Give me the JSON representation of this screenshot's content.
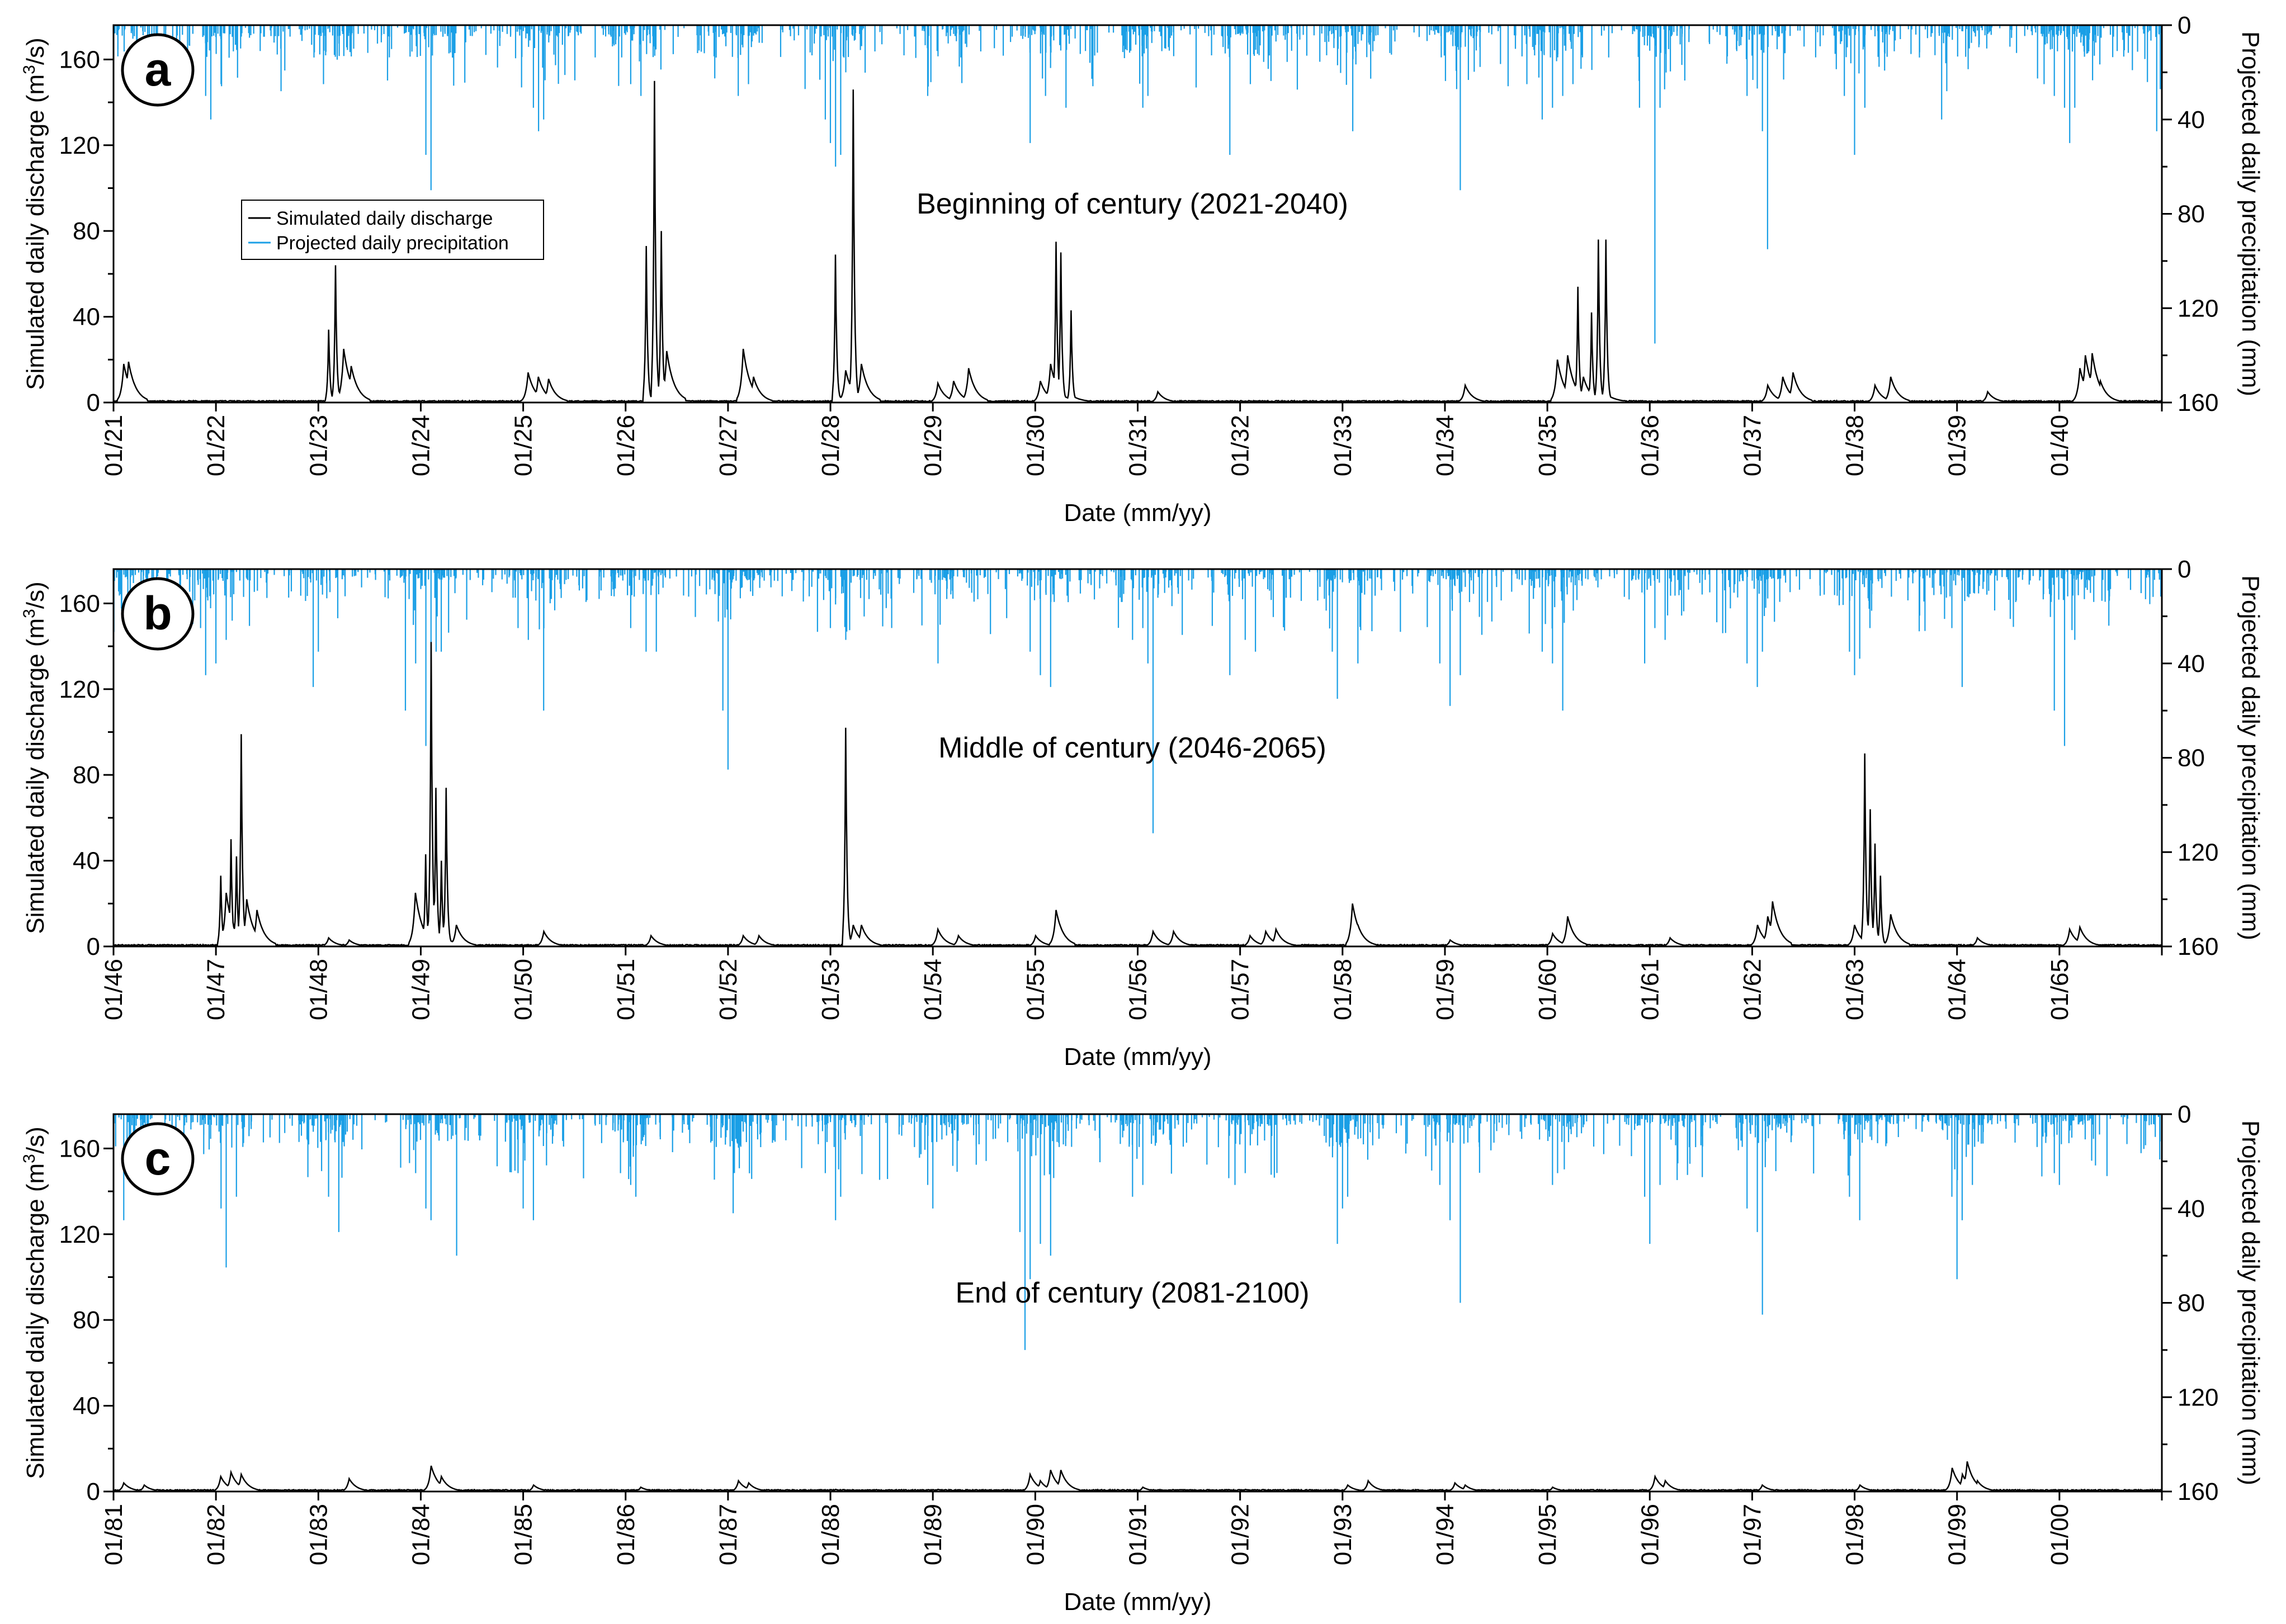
{
  "colors": {
    "discharge": "#000000",
    "precipitation": "#1a9fe6",
    "axis": "#000000",
    "background": "#ffffff"
  },
  "legend": {
    "discharge": "Simulated daily discharge",
    "precipitation": "Projected daily precipitation"
  },
  "chart_data": [
    {
      "type": "line",
      "panel": "a",
      "annotation": "Beginning of century (2021-2040)",
      "xlabel": "Date (mm/yy)",
      "ylabel_left": "Simulated daily discharge (m",
      "ylabel_left_sup": "3",
      "ylabel_left_end": "/s)",
      "ylabel_right": "Projected daily precipitation (mm)",
      "ylim_left": [
        0,
        176
      ],
      "ylim_right_inverted": [
        0,
        160
      ],
      "left_ticks": [
        "0",
        "40",
        "80",
        "120",
        "160"
      ],
      "right_ticks": [
        "0",
        "40",
        "80",
        "120",
        "160"
      ],
      "x_ticks": [
        "01/21",
        "01/22",
        "01/23",
        "01/24",
        "01/25",
        "01/26",
        "01/27",
        "01/28",
        "01/29",
        "01/30",
        "01/31",
        "01/32",
        "01/33",
        "01/34",
        "01/35",
        "01/36",
        "01/37",
        "01/38",
        "01/39",
        "01/40"
      ],
      "discharge_peaks": [
        [
          0.1,
          18
        ],
        [
          0.15,
          19
        ],
        [
          2.1,
          34
        ],
        [
          2.17,
          64
        ],
        [
          2.25,
          25
        ],
        [
          2.32,
          17
        ],
        [
          4.05,
          14
        ],
        [
          4.15,
          12
        ],
        [
          4.25,
          11
        ],
        [
          5.2,
          73
        ],
        [
          5.28,
          150
        ],
        [
          5.35,
          80
        ],
        [
          5.4,
          24
        ],
        [
          6.15,
          25
        ],
        [
          6.25,
          12
        ],
        [
          7.05,
          69
        ],
        [
          7.15,
          15
        ],
        [
          7.22,
          146
        ],
        [
          7.3,
          18
        ],
        [
          8.05,
          9
        ],
        [
          8.2,
          10
        ],
        [
          8.35,
          16
        ],
        [
          9.05,
          10
        ],
        [
          9.15,
          18
        ],
        [
          9.2,
          75
        ],
        [
          9.25,
          70
        ],
        [
          9.35,
          43
        ],
        [
          10.2,
          5
        ],
        [
          13.2,
          8
        ],
        [
          14.1,
          20
        ],
        [
          14.2,
          22
        ],
        [
          14.3,
          54
        ],
        [
          14.35,
          12
        ],
        [
          14.43,
          42
        ],
        [
          14.5,
          76
        ],
        [
          14.57,
          76
        ],
        [
          16.15,
          8
        ],
        [
          16.3,
          12
        ],
        [
          16.4,
          14
        ],
        [
          17.2,
          8
        ],
        [
          17.35,
          12
        ],
        [
          18.3,
          5
        ],
        [
          19.2,
          16
        ],
        [
          19.25,
          22
        ],
        [
          19.32,
          23
        ],
        [
          19.4,
          10
        ]
      ],
      "precip_peaks": [
        [
          0.9,
          30
        ],
        [
          0.95,
          40
        ],
        [
          1.05,
          25
        ],
        [
          2.05,
          25
        ],
        [
          3.05,
          55
        ],
        [
          3.1,
          70
        ],
        [
          4.1,
          35
        ],
        [
          4.15,
          45
        ],
        [
          4.2,
          40
        ],
        [
          5.05,
          25
        ],
        [
          5.15,
          30
        ],
        [
          6.1,
          30
        ],
        [
          6.2,
          25
        ],
        [
          6.95,
          40
        ],
        [
          7.0,
          50
        ],
        [
          7.05,
          60
        ],
        [
          7.1,
          55
        ],
        [
          7.15,
          20
        ],
        [
          7.95,
          30
        ],
        [
          8.95,
          50
        ],
        [
          9.1,
          30
        ],
        [
          9.3,
          35
        ],
        [
          10.05,
          35
        ],
        [
          10.1,
          30
        ],
        [
          10.9,
          55
        ],
        [
          11.1,
          25
        ],
        [
          12.1,
          45
        ],
        [
          13.15,
          70
        ],
        [
          13.8,
          25
        ],
        [
          13.95,
          40
        ],
        [
          14.05,
          35
        ],
        [
          14.15,
          30
        ],
        [
          14.25,
          25
        ],
        [
          14.9,
          35
        ],
        [
          15.05,
          135
        ],
        [
          15.1,
          35
        ],
        [
          15.95,
          30
        ],
        [
          16.1,
          45
        ],
        [
          16.15,
          95
        ],
        [
          16.9,
          30
        ],
        [
          17.0,
          55
        ],
        [
          17.1,
          35
        ],
        [
          17.85,
          40
        ],
        [
          17.9,
          28
        ],
        [
          18.85,
          25
        ],
        [
          18.95,
          30
        ],
        [
          19.05,
          35
        ],
        [
          19.1,
          50
        ],
        [
          19.15,
          35
        ],
        [
          19.95,
          45
        ]
      ]
    },
    {
      "type": "line",
      "panel": "b",
      "annotation": "Middle of century (2046-2065)",
      "xlabel": "Date (mm/yy)",
      "ylabel_left": "Simulated daily discharge (m",
      "ylabel_left_sup": "3",
      "ylabel_left_end": "/s)",
      "ylabel_right": "Projected daily precipitation (mm)",
      "ylim_left": [
        0,
        176
      ],
      "ylim_right_inverted": [
        0,
        160
      ],
      "left_ticks": [
        "0",
        "40",
        "80",
        "120",
        "160"
      ],
      "right_ticks": [
        "0",
        "40",
        "80",
        "120",
        "160"
      ],
      "x_ticks": [
        "01/46",
        "01/47",
        "01/48",
        "01/49",
        "01/50",
        "01/51",
        "01/52",
        "01/53",
        "01/54",
        "01/55",
        "01/56",
        "01/57",
        "01/58",
        "01/59",
        "01/60",
        "01/61",
        "01/62",
        "01/63",
        "01/64",
        "01/65"
      ],
      "discharge_peaks": [
        [
          1.05,
          33
        ],
        [
          1.1,
          25
        ],
        [
          1.15,
          50
        ],
        [
          1.2,
          42
        ],
        [
          1.25,
          99
        ],
        [
          1.3,
          22
        ],
        [
          1.4,
          17
        ],
        [
          2.1,
          4
        ],
        [
          2.3,
          3
        ],
        [
          2.95,
          25
        ],
        [
          3.05,
          43
        ],
        [
          3.1,
          142
        ],
        [
          3.15,
          74
        ],
        [
          3.2,
          40
        ],
        [
          3.25,
          74
        ],
        [
          3.35,
          10
        ],
        [
          4.2,
          7
        ],
        [
          5.25,
          5
        ],
        [
          6.15,
          5
        ],
        [
          6.3,
          5
        ],
        [
          7.15,
          102
        ],
        [
          7.22,
          10
        ],
        [
          7.3,
          10
        ],
        [
          8.05,
          8
        ],
        [
          8.25,
          5
        ],
        [
          9.0,
          5
        ],
        [
          9.2,
          17
        ],
        [
          10.15,
          7
        ],
        [
          10.35,
          7
        ],
        [
          11.1,
          5
        ],
        [
          11.25,
          7
        ],
        [
          11.35,
          8
        ],
        [
          12.1,
          20
        ],
        [
          12.15,
          10
        ],
        [
          13.05,
          3
        ],
        [
          14.05,
          6
        ],
        [
          14.2,
          14
        ],
        [
          15.2,
          4
        ],
        [
          16.05,
          10
        ],
        [
          16.15,
          14
        ],
        [
          16.2,
          21
        ],
        [
          17.0,
          10
        ],
        [
          17.1,
          90
        ],
        [
          17.15,
          64
        ],
        [
          17.2,
          48
        ],
        [
          17.25,
          33
        ],
        [
          17.35,
          15
        ],
        [
          18.2,
          4
        ],
        [
          19.1,
          8
        ],
        [
          19.2,
          9
        ]
      ],
      "precip_peaks": [
        [
          0.85,
          25
        ],
        [
          0.9,
          45
        ],
        [
          1.0,
          40
        ],
        [
          1.1,
          30
        ],
        [
          1.95,
          50
        ],
        [
          2.0,
          35
        ],
        [
          2.85,
          60
        ],
        [
          2.95,
          40
        ],
        [
          3.05,
          75
        ],
        [
          3.1,
          45
        ],
        [
          3.15,
          35
        ],
        [
          3.2,
          35
        ],
        [
          3.95,
          25
        ],
        [
          4.05,
          30
        ],
        [
          4.2,
          60
        ],
        [
          5.05,
          25
        ],
        [
          5.2,
          35
        ],
        [
          5.3,
          35
        ],
        [
          5.95,
          60
        ],
        [
          6.0,
          85
        ],
        [
          7.0,
          25
        ],
        [
          7.05,
          15
        ],
        [
          7.15,
          30
        ],
        [
          8.05,
          40
        ],
        [
          8.95,
          35
        ],
        [
          9.05,
          45
        ],
        [
          9.15,
          50
        ],
        [
          9.95,
          30
        ],
        [
          10.05,
          25
        ],
        [
          10.1,
          40
        ],
        [
          10.15,
          112
        ],
        [
          10.9,
          45
        ],
        [
          11.05,
          30
        ],
        [
          11.15,
          35
        ],
        [
          11.9,
          35
        ],
        [
          11.95,
          55
        ],
        [
          12.15,
          40
        ],
        [
          12.95,
          40
        ],
        [
          13.05,
          58
        ],
        [
          13.15,
          45
        ],
        [
          13.95,
          35
        ],
        [
          14.05,
          40
        ],
        [
          14.15,
          60
        ],
        [
          14.95,
          40
        ],
        [
          15.05,
          25
        ],
        [
          15.15,
          30
        ],
        [
          15.95,
          40
        ],
        [
          16.05,
          50
        ],
        [
          16.1,
          35
        ],
        [
          16.95,
          35
        ],
        [
          17.0,
          45
        ],
        [
          17.05,
          38
        ],
        [
          17.15,
          25
        ],
        [
          17.95,
          25
        ],
        [
          18.05,
          50
        ],
        [
          18.95,
          60
        ],
        [
          19.05,
          75
        ],
        [
          19.15,
          30
        ]
      ]
    },
    {
      "type": "line",
      "panel": "c",
      "annotation": "End of century (2081-2100)",
      "xlabel": "Date (mm/yy)",
      "ylabel_left": "Simulated daily discharge (m",
      "ylabel_left_sup": "3",
      "ylabel_left_end": "/s)",
      "ylabel_right": "Projected daily precipitation (mm)",
      "ylim_left": [
        0,
        176
      ],
      "ylim_right_inverted": [
        0,
        160
      ],
      "left_ticks": [
        "0",
        "40",
        "80",
        "120",
        "160"
      ],
      "right_ticks": [
        "0",
        "40",
        "80",
        "120",
        "160"
      ],
      "x_ticks": [
        "01/81",
        "01/82",
        "01/83",
        "01/84",
        "01/85",
        "01/86",
        "01/87",
        "01/88",
        "01/89",
        "01/90",
        "01/91",
        "01/92",
        "01/93",
        "01/94",
        "01/95",
        "01/96",
        "01/97",
        "01/98",
        "01/99",
        "01/00"
      ],
      "discharge_peaks": [
        [
          0.1,
          4
        ],
        [
          0.3,
          3
        ],
        [
          1.05,
          7
        ],
        [
          1.15,
          9
        ],
        [
          1.25,
          8
        ],
        [
          2.3,
          6
        ],
        [
          3.1,
          12
        ],
        [
          3.2,
          7
        ],
        [
          4.1,
          3
        ],
        [
          5.15,
          2
        ],
        [
          6.1,
          5
        ],
        [
          6.2,
          4
        ],
        [
          7.05,
          1
        ],
        [
          8.05,
          1
        ],
        [
          8.95,
          8
        ],
        [
          9.05,
          5
        ],
        [
          9.15,
          10
        ],
        [
          9.25,
          10
        ],
        [
          10.05,
          2
        ],
        [
          11.05,
          1
        ],
        [
          12.05,
          3
        ],
        [
          12.25,
          5
        ],
        [
          13.1,
          4
        ],
        [
          13.2,
          3
        ],
        [
          14.05,
          2
        ],
        [
          15.05,
          7
        ],
        [
          15.15,
          5
        ],
        [
          16.1,
          3
        ],
        [
          17.05,
          3
        ],
        [
          17.95,
          11
        ],
        [
          18.05,
          8
        ],
        [
          18.1,
          14
        ],
        [
          18.2,
          5
        ]
      ],
      "precip_peaks": [
        [
          0.1,
          45
        ],
        [
          0.2,
          30
        ],
        [
          1.05,
          40
        ],
        [
          1.1,
          65
        ],
        [
          1.2,
          35
        ],
        [
          2.1,
          35
        ],
        [
          2.2,
          50
        ],
        [
          2.95,
          25
        ],
        [
          3.05,
          40
        ],
        [
          3.1,
          45
        ],
        [
          3.35,
          60
        ],
        [
          3.95,
          25
        ],
        [
          4.0,
          40
        ],
        [
          4.1,
          45
        ],
        [
          4.95,
          25
        ],
        [
          5.05,
          30
        ],
        [
          5.1,
          35
        ],
        [
          6.05,
          30
        ],
        [
          6.05,
          42
        ],
        [
          6.95,
          25
        ],
        [
          7.05,
          45
        ],
        [
          7.1,
          35
        ],
        [
          7.95,
          30
        ],
        [
          8.0,
          40
        ],
        [
          8.85,
          50
        ],
        [
          8.9,
          100
        ],
        [
          8.95,
          70
        ],
        [
          9.05,
          55
        ],
        [
          9.15,
          60
        ],
        [
          9.95,
          35
        ],
        [
          10.05,
          30
        ],
        [
          10.95,
          30
        ],
        [
          11.05,
          25
        ],
        [
          11.95,
          55
        ],
        [
          12.0,
          40
        ],
        [
          12.05,
          35
        ],
        [
          12.95,
          30
        ],
        [
          13.05,
          45
        ],
        [
          13.15,
          80
        ],
        [
          14.05,
          30
        ],
        [
          14.1,
          25
        ],
        [
          14.95,
          35
        ],
        [
          15.0,
          55
        ],
        [
          15.1,
          30
        ],
        [
          15.95,
          40
        ],
        [
          16.05,
          50
        ],
        [
          16.1,
          85
        ],
        [
          16.95,
          35
        ],
        [
          17.05,
          45
        ],
        [
          17.95,
          35
        ],
        [
          18.0,
          70
        ],
        [
          18.05,
          45
        ],
        [
          18.15,
          30
        ],
        [
          18.95,
          25
        ],
        [
          19.0,
          30
        ]
      ]
    }
  ]
}
